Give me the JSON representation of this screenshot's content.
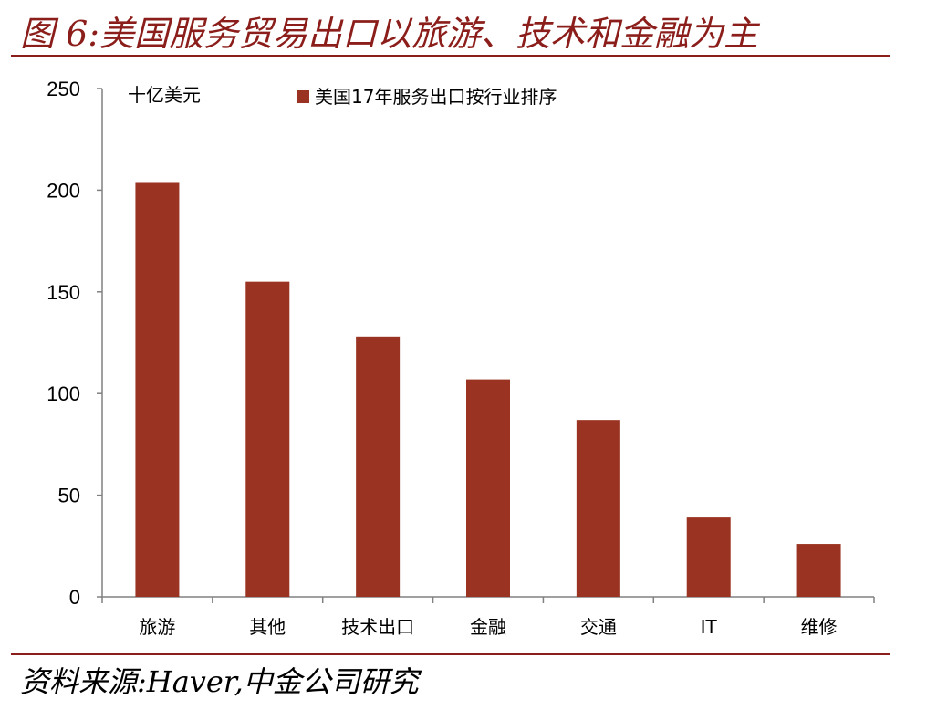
{
  "title": "图 6:美国服务贸易出口以旅游、技术和金融为主",
  "source": "资料来源:Haver,中金公司研究",
  "colors": {
    "accent": "#8b1e1a",
    "bar": "#9a3321"
  },
  "chart_data": {
    "type": "bar",
    "categories": [
      "旅游",
      "其他",
      "技术出口",
      "金融",
      "交通",
      "IT",
      "维修"
    ],
    "series": [
      {
        "name": "美国17年服务出口按行业排序",
        "values": [
          204,
          155,
          128,
          107,
          87,
          39,
          26
        ]
      }
    ],
    "ylabel": "十亿美元",
    "ylim": [
      0,
      250
    ],
    "yticks": [
      0,
      50,
      100,
      150,
      200,
      250
    ],
    "grid": false,
    "legend": "top-center"
  }
}
